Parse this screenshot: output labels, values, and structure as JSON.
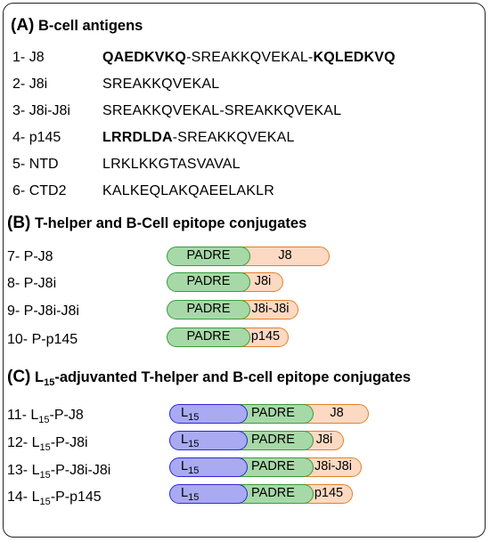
{
  "sectionA": {
    "letter": "(A)",
    "title": "B-cell antigens",
    "rows": [
      {
        "num": "1-",
        "name": "J8",
        "seq_bold1": "QAEDKVKQ",
        "seq_mid": "-SREAKKQVEKAL-",
        "seq_bold2": "KQLEDKVQ"
      },
      {
        "num": "2-",
        "name": "J8i",
        "seq": "SREAKKQVEKAL"
      },
      {
        "num": "3-",
        "name": "J8i-J8i",
        "seq": "SREAKKQVEKAL-SREAKKQVEKAL"
      },
      {
        "num": "4-",
        "name": "p145",
        "seq_bold1": "LRRDLDA",
        "seq_mid": "-SREAKKQVEKAL"
      },
      {
        "num": "5-",
        "name": "NTD",
        "seq": "LRKLKKGTASVAVAL"
      },
      {
        "num": "6-",
        "name": "CTD2",
        "seq": "KALKEQLAKQAEELAKLR"
      }
    ]
  },
  "sectionB": {
    "letter": "(B)",
    "title": "T-helper and B-Cell epitope conjugates",
    "rows": [
      {
        "label": "7- P-J8",
        "padre": "PADRE",
        "epitope": "J8"
      },
      {
        "label": "8- P-J8i",
        "padre": "PADRE",
        "epitope": "J8i"
      },
      {
        "label": "9- P-J8i-J8i",
        "padre": "PADRE",
        "epitope": "J8i-J8i"
      },
      {
        "label": "10- P-p145",
        "padre": "PADRE",
        "epitope": "p145"
      }
    ]
  },
  "sectionC": {
    "letter": "(C)",
    "title_pre": "L",
    "title_sub": "15",
    "title_post": "-adjuvanted T-helper and B-cell epitope conjugates",
    "rows": [
      {
        "num": "11-",
        "l": "L",
        "sub": "15",
        "rest": "-P-J8",
        "lipid": "L",
        "lipid_sub": "15",
        "padre": "PADRE",
        "epitope": "J8"
      },
      {
        "num": "12-",
        "l": "L",
        "sub": "15",
        "rest": "-P-J8i",
        "lipid": "L",
        "lipid_sub": "15",
        "padre": "PADRE",
        "epitope": "J8i"
      },
      {
        "num": "13-",
        "l": "L",
        "sub": "15",
        "rest": "-P-J8i-J8i",
        "lipid": "L",
        "lipid_sub": "15",
        "padre": "PADRE",
        "epitope": "J8i-J8i"
      },
      {
        "num": "14-",
        "l": "L",
        "sub": "15",
        "rest": "-P-p145",
        "lipid": "L",
        "lipid_sub": "15",
        "padre": "PADRE",
        "epitope": "p145"
      }
    ]
  },
  "colors": {
    "padre_fill": "#a6d9a7",
    "padre_border": "#3a9c3f",
    "epitope_fill": "#fcd9c2",
    "epitope_border": "#e0822b",
    "lipid_fill": "#a9aaf2",
    "lipid_border": "#2b2bd0"
  }
}
